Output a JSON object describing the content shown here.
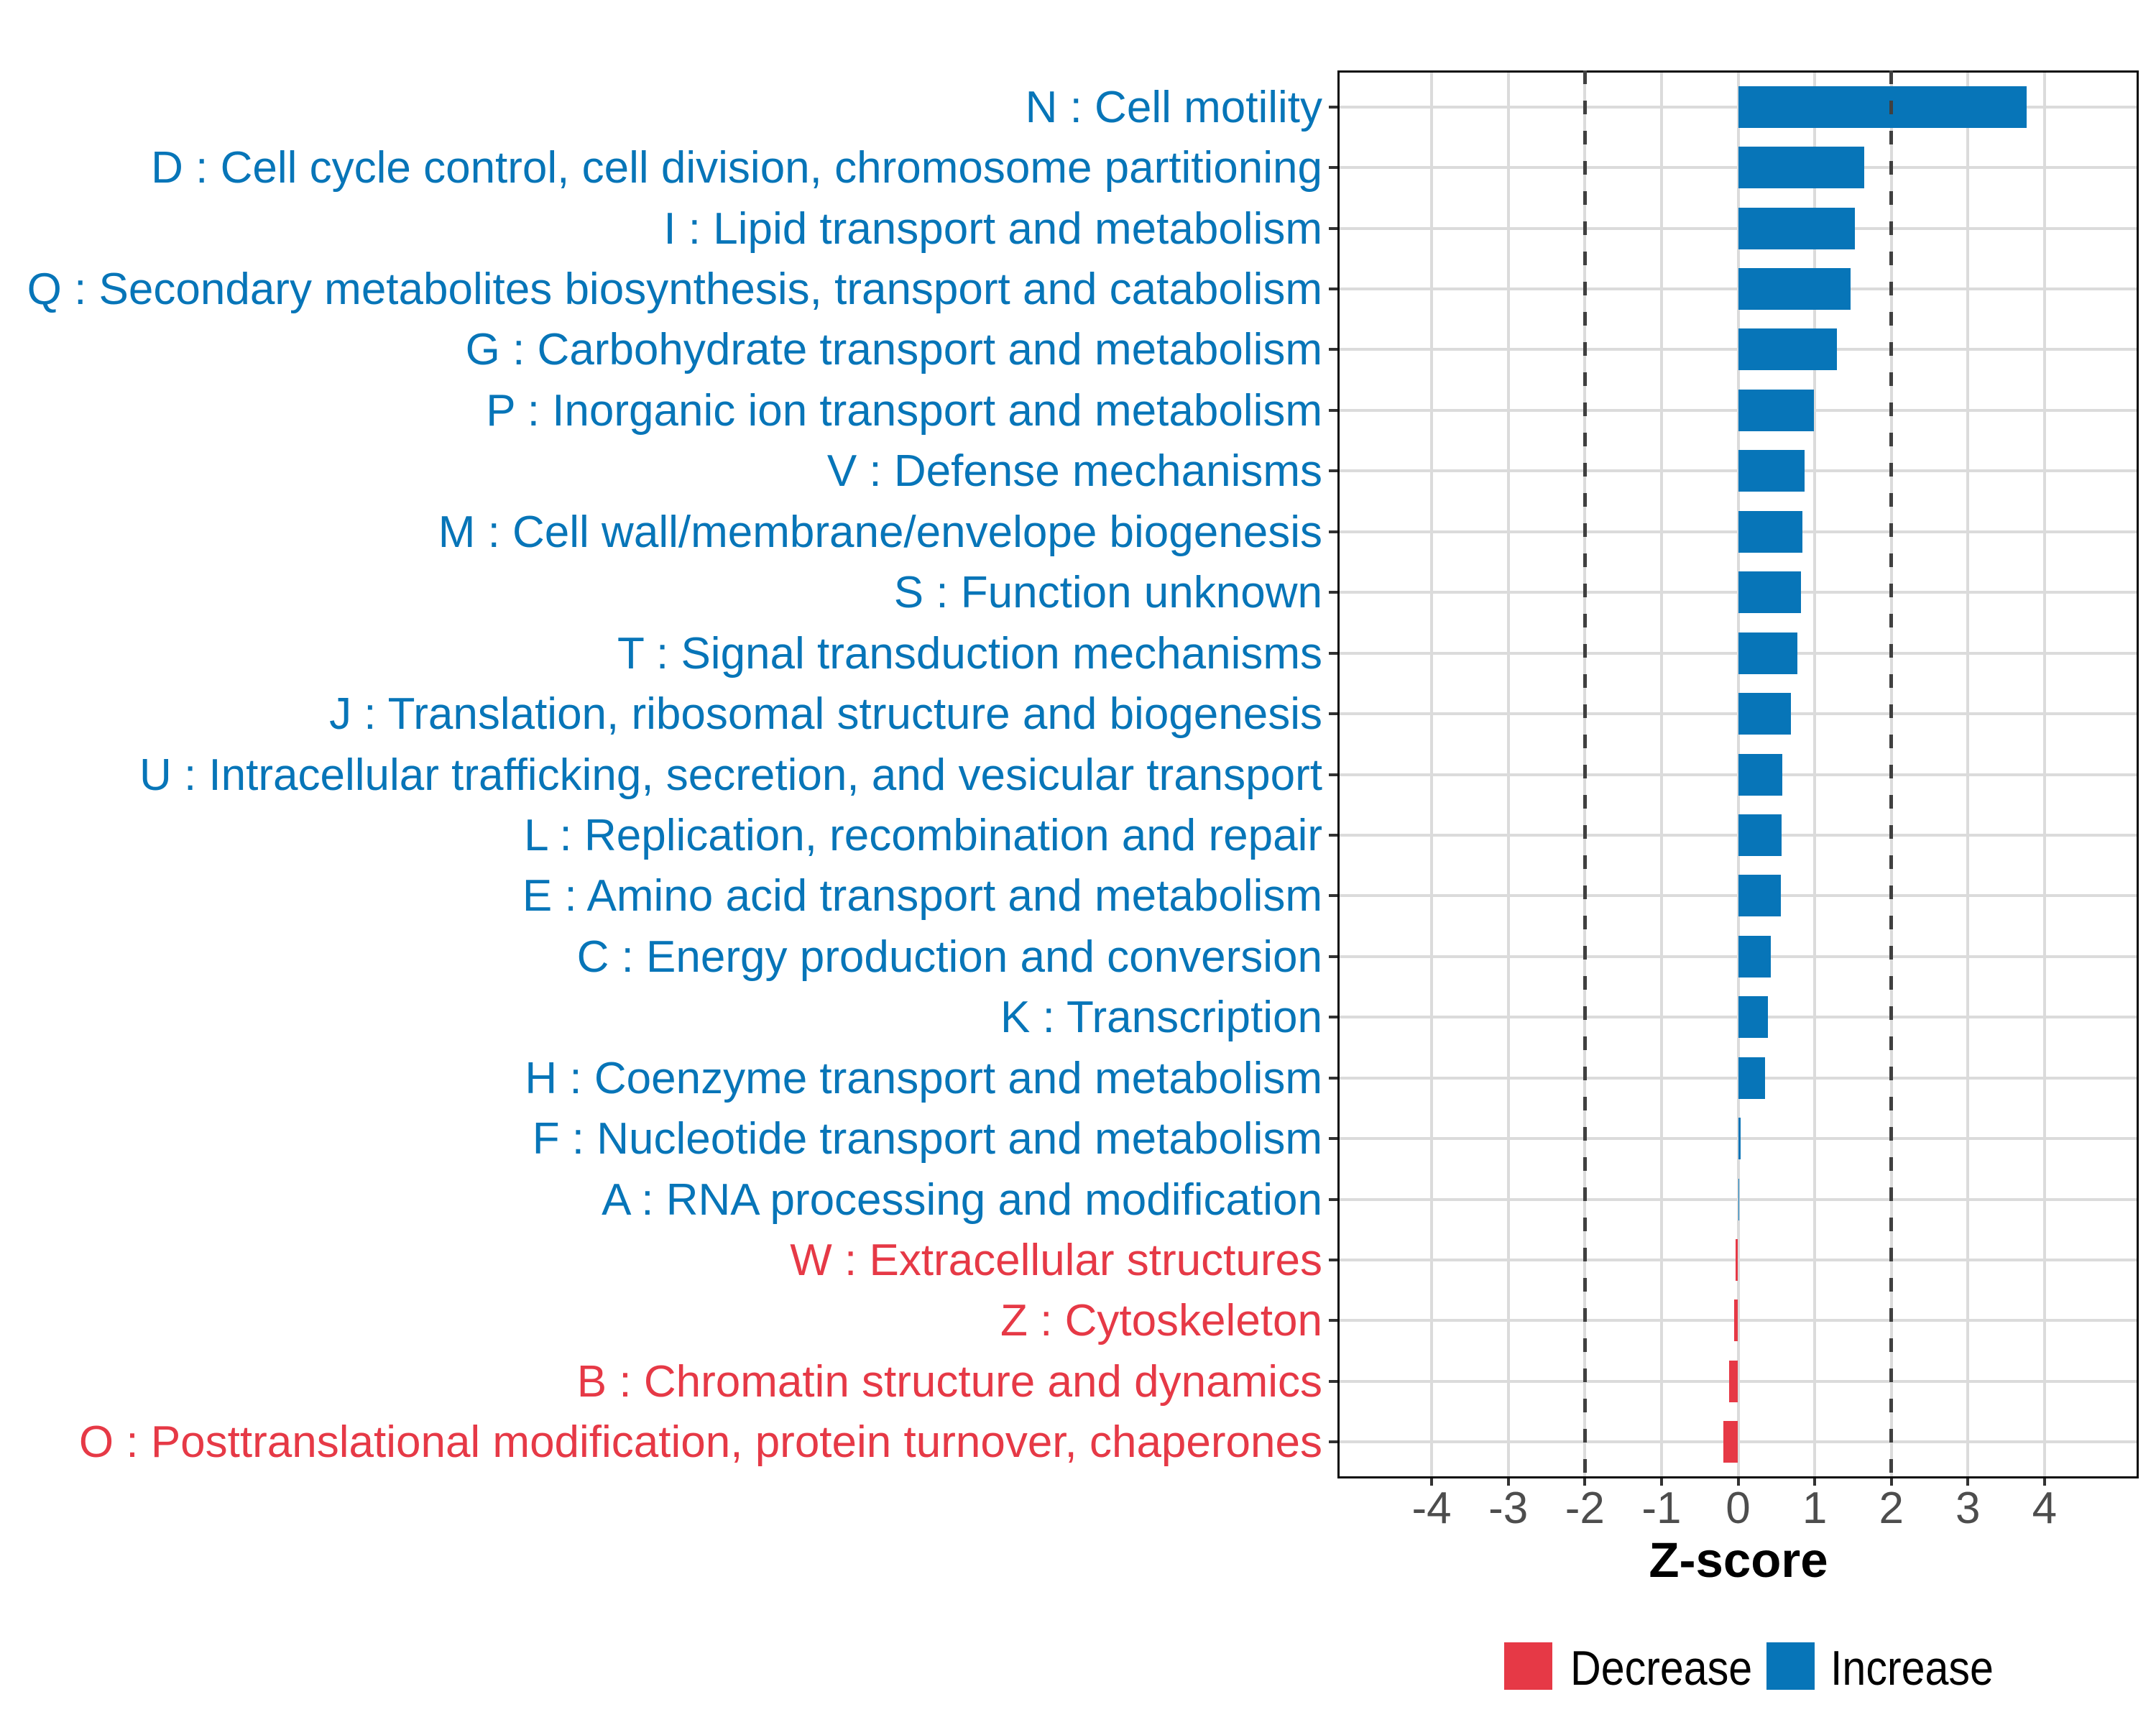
{
  "chart_data": {
    "type": "bar",
    "orientation": "horizontal",
    "title": "",
    "xlabel": "Z-score",
    "ylabel": "",
    "xlim": [
      -5.23,
      5.23
    ],
    "x_ticks": [
      "-4",
      "-3",
      "-2",
      "-1",
      "0",
      "1",
      "2",
      "3",
      "4"
    ],
    "x_tick_values": [
      -4,
      -3,
      -2,
      -1,
      0,
      1,
      2,
      3,
      4
    ],
    "reference_lines": [
      -2,
      2
    ],
    "grid": "major",
    "categories": [
      "N : Cell motility",
      "D : Cell cycle control, cell division, chromosome partitioning",
      "I : Lipid transport and metabolism",
      "Q : Secondary metabolites biosynthesis, transport and catabolism",
      "G : Carbohydrate transport and metabolism",
      "P : Inorganic ion transport and metabolism",
      "V : Defense mechanisms",
      "M : Cell wall/membrane/envelope biogenesis",
      "S : Function unknown",
      "T : Signal transduction mechanisms",
      "J : Translation, ribosomal structure and biogenesis",
      "U : Intracellular trafficking, secretion, and vesicular transport",
      "L : Replication, recombination and repair",
      "E : Amino acid transport and metabolism",
      "C : Energy production and conversion",
      "K : Transcription",
      "H : Coenzyme transport and metabolism",
      "F : Nucleotide transport and metabolism",
      "A : RNA processing and modification",
      "W : Extracellular structures",
      "Z : Cytoskeleton",
      "B : Chromatin structure and dynamics",
      "O : Posttranslational modification, protein turnover, chaperones"
    ],
    "values": [
      3.77,
      1.65,
      1.52,
      1.47,
      1.29,
      0.99,
      0.87,
      0.84,
      0.82,
      0.77,
      0.69,
      0.58,
      0.57,
      0.56,
      0.43,
      0.39,
      0.35,
      0.035,
      0.015,
      -0.03,
      -0.055,
      -0.12,
      -0.19
    ],
    "groups": [
      "Increase",
      "Increase",
      "Increase",
      "Increase",
      "Increase",
      "Increase",
      "Increase",
      "Increase",
      "Increase",
      "Increase",
      "Increase",
      "Increase",
      "Increase",
      "Increase",
      "Increase",
      "Increase",
      "Increase",
      "Increase",
      "Increase",
      "Decrease",
      "Decrease",
      "Decrease",
      "Decrease"
    ],
    "legend": {
      "position": "bottom",
      "entries": [
        {
          "label": "Decrease",
          "color": "#E63946"
        },
        {
          "label": "Increase",
          "color": "#0775B8"
        }
      ]
    },
    "colors": {
      "increase": "#0775B8",
      "decrease": "#E63946",
      "axis_tick_text": "#4D4D4D",
      "axis_title": "#000000",
      "gridline": "#DBDBDB",
      "reference_line": "#404040",
      "panel_border": "#0a0a0a",
      "tick_mark": "#333333",
      "background": "#ffffff"
    }
  }
}
